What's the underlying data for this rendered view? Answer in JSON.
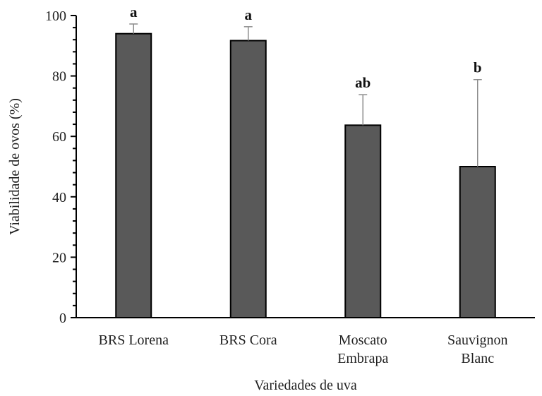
{
  "chart_data": {
    "type": "bar",
    "categories": [
      [
        "BRS Lorena"
      ],
      [
        "BRS Cora"
      ],
      [
        "Moscato",
        "Embrapa"
      ],
      [
        "Sauvignon",
        "Blanc"
      ]
    ],
    "values": [
      94,
      91.7,
      63.7,
      50
    ],
    "error_upper": [
      97.2,
      96.3,
      73.8,
      78.8
    ],
    "significance": [
      "a",
      "a",
      "ab",
      "b"
    ],
    "xlabel": "Variedades de uva",
    "ylabel": "Viabilidade de ovos (%)",
    "ylim": [
      0,
      100
    ],
    "yticks": [
      0,
      20,
      40,
      60,
      80,
      100
    ],
    "grid": false,
    "bar_color": "#595959",
    "error_bar_color": "#8c8c8c"
  }
}
